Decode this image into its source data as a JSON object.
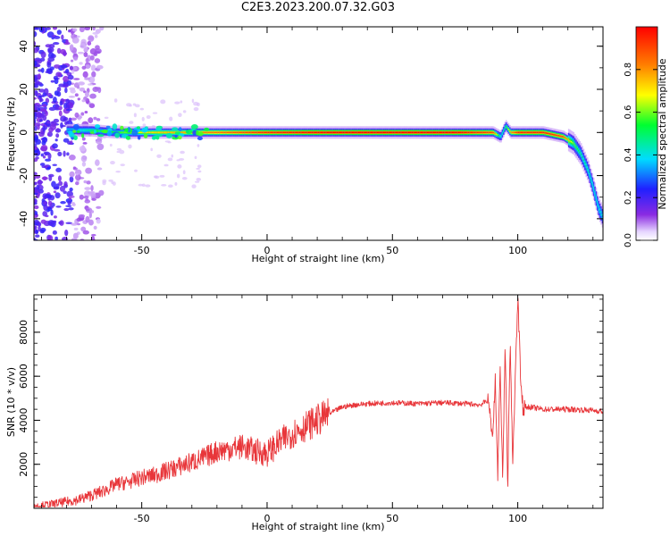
{
  "page": {
    "title": "C2E3.2023.200.07.32.G03"
  },
  "colors": {
    "line": "#e8363a",
    "axis": "#000000",
    "spectrogram_low": "#8a2be2",
    "spectrogram_high": "#ff0000"
  },
  "chart_data": [
    {
      "type": "heatmap",
      "title": "",
      "xlabel": "Height of straight line (km)",
      "ylabel": "Frequency (Hz)",
      "xlim": [
        -93,
        134
      ],
      "ylim": [
        -50,
        49
      ],
      "xticks": [
        -50,
        0,
        50,
        100
      ],
      "xtick_labels": [
        "-50",
        "0",
        "50",
        "100"
      ],
      "yticks": [
        40,
        20,
        0,
        -20,
        -40
      ],
      "ytick_labels": [
        "40",
        "20",
        "0",
        "-20",
        "-40"
      ],
      "colormap": "rainbow (violet-blue-cyan-green-yellow-red)",
      "colorbar": {
        "label": "Normalized spectral amplitude",
        "range": [
          0,
          1
        ],
        "ticks": [
          0.0,
          0.2,
          0.4,
          0.6,
          0.8
        ],
        "tick_labels": [
          "0.0",
          "0.2",
          "0.4",
          "0.6",
          "0.8"
        ]
      },
      "ridge": {
        "description_note": "",
        "x": [
          -78,
          -70,
          -60,
          -50,
          -40,
          -30,
          -20,
          -10,
          0,
          25,
          50,
          75,
          90,
          93,
          95,
          97,
          100,
          110,
          118,
          122,
          125,
          128,
          130,
          132,
          134
        ],
        "frequency": [
          1,
          1,
          0,
          0,
          0,
          0,
          0,
          0,
          0,
          0,
          0,
          0,
          0,
          -2,
          3,
          0,
          0,
          0,
          -2,
          -5,
          -10,
          -18,
          -26,
          -35,
          -40
        ],
        "peak_amplitude": [
          0.3,
          0.5,
          0.55,
          0.7,
          0.75,
          0.8,
          0.85,
          0.9,
          0.95,
          1.0,
          1.0,
          1.0,
          0.9,
          0.4,
          0.5,
          0.8,
          0.95,
          0.95,
          0.9,
          0.6,
          0.5,
          0.45,
          0.4,
          0.35,
          0.3
        ]
      },
      "noise_region_x": [
        -93,
        -66
      ]
    },
    {
      "type": "line",
      "title": "",
      "xlabel": "Height of straight line (km)",
      "ylabel": "SNR (10 * v/v)",
      "xlim": [
        -93,
        134
      ],
      "ylim": [
        0,
        9700
      ],
      "xticks": [
        -50,
        0,
        50,
        100
      ],
      "xtick_labels": [
        "-50",
        "0",
        "50",
        "100"
      ],
      "yticks": [
        2000,
        4000,
        6000,
        8000
      ],
      "ytick_labels": [
        "2000",
        "4000",
        "6000",
        "8000"
      ],
      "series": [
        {
          "color": "#e8363a",
          "x": [
            -93,
            -85,
            -80,
            -75,
            -70,
            -65,
            -60,
            -55,
            -50,
            -45,
            -40,
            -35,
            -30,
            -25,
            -20,
            -15,
            -10,
            -5,
            0,
            5,
            10,
            15,
            20,
            25,
            30,
            35,
            40,
            50,
            60,
            70,
            80,
            85,
            88,
            90,
            91,
            92,
            93,
            94,
            95,
            96,
            97,
            98,
            99,
            100,
            101,
            102,
            105,
            110,
            120,
            130,
            134
          ],
          "y": [
            100,
            200,
            300,
            400,
            600,
            800,
            1100,
            1200,
            1400,
            1500,
            1700,
            1900,
            2100,
            2300,
            2600,
            2700,
            2800,
            2600,
            2500,
            3000,
            3400,
            3700,
            4000,
            4300,
            4600,
            4700,
            4750,
            4800,
            4750,
            4800,
            4750,
            4700,
            4900,
            3400,
            5900,
            1500,
            6500,
            1300,
            7600,
            900,
            7700,
            2000,
            5800,
            9600,
            6400,
            4600,
            4600,
            4500,
            4500,
            4450,
            4400
          ]
        }
      ]
    }
  ]
}
